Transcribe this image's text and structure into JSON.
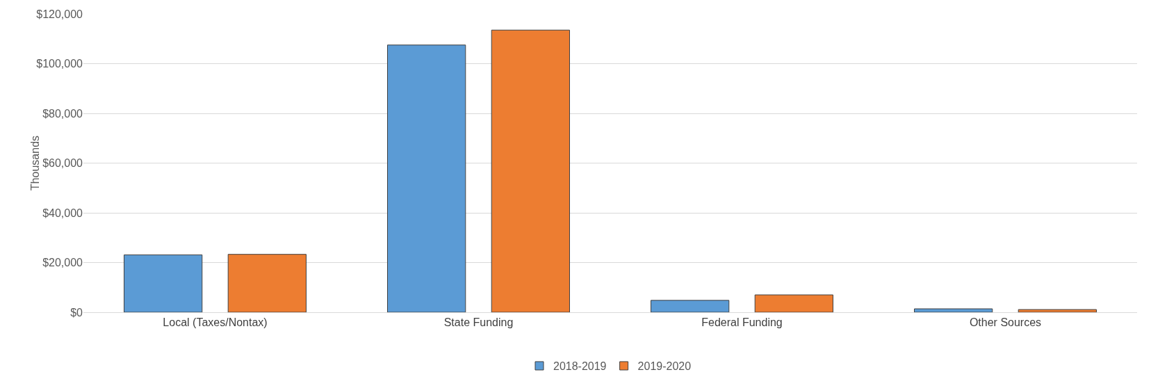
{
  "chart_data": {
    "type": "bar",
    "ylabel": "Thousands",
    "categories": [
      "Local (Taxes/Nontax)",
      "State Funding",
      "Federal Funding",
      "Other Sources"
    ],
    "series": [
      {
        "name": "2018-2019",
        "color": "#5b9bd5",
        "values": [
          23100,
          107500,
          4800,
          1400
        ]
      },
      {
        "name": "2019-2020",
        "color": "#ed7d31",
        "values": [
          23300,
          113500,
          7000,
          1100
        ]
      }
    ],
    "ylim": [
      0,
      120000
    ],
    "yticks": [
      {
        "value": 0,
        "label": "$0"
      },
      {
        "value": 20000,
        "label": "$20,000"
      },
      {
        "value": 40000,
        "label": "$40,000"
      },
      {
        "value": 60000,
        "label": "$60,000"
      },
      {
        "value": 80000,
        "label": "$80,000"
      },
      {
        "value": 100000,
        "label": "$100,000"
      },
      {
        "value": 120000,
        "label": "$120,000"
      }
    ],
    "grid": "y",
    "legend": "bottom"
  }
}
